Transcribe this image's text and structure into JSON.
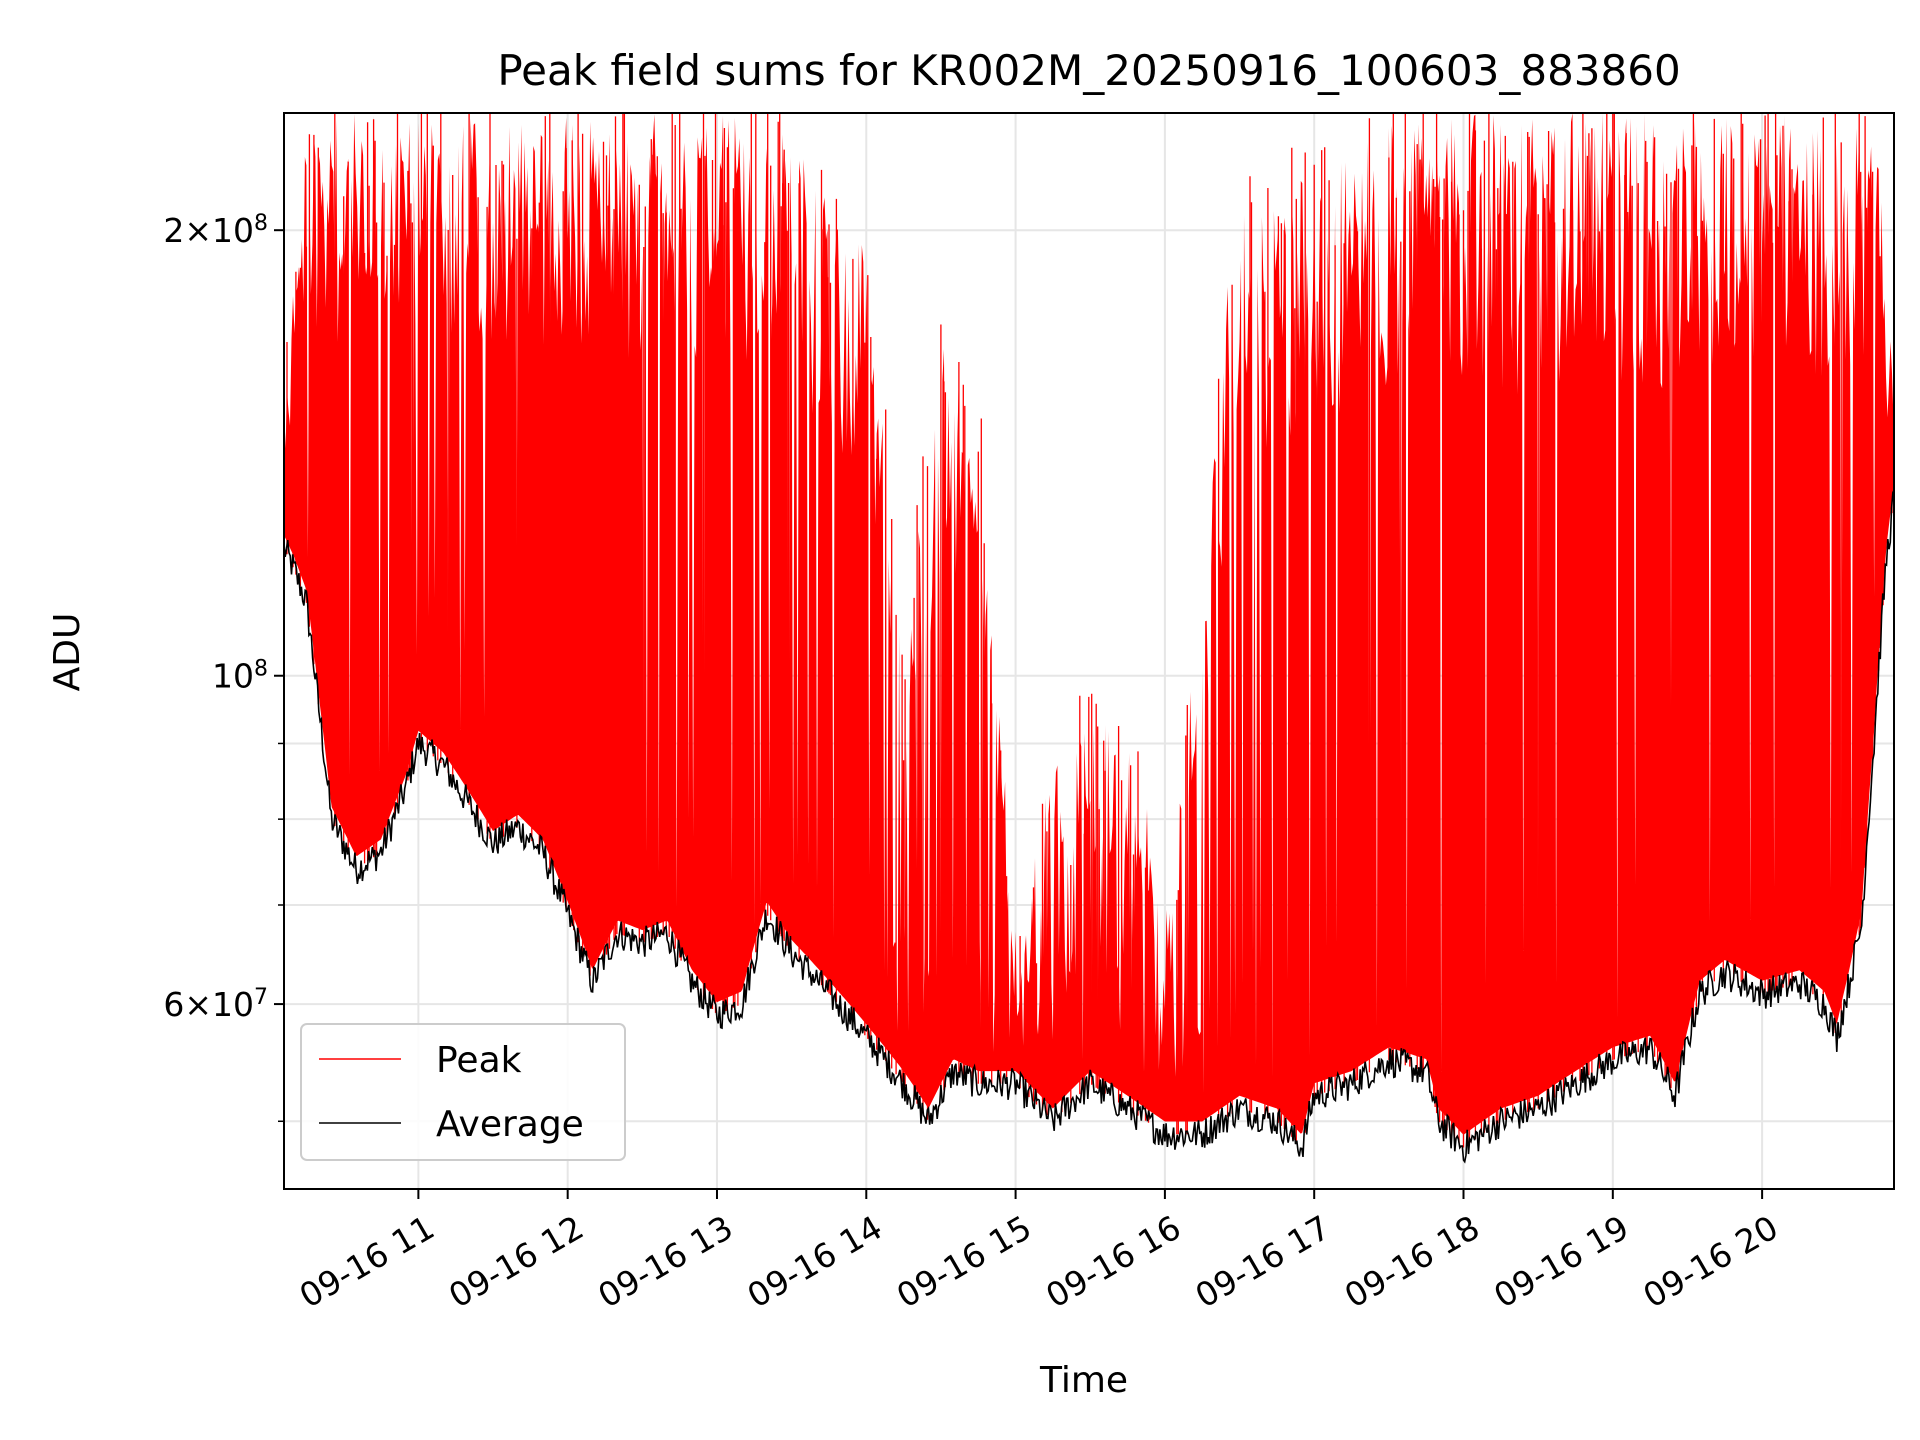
{
  "chart_data": {
    "type": "line",
    "title": "Peak field sums for KR002M_20250916_100603_883860",
    "xlabel": "Time",
    "ylabel": "ADU",
    "y_scale": "log",
    "ylim": [
      45000000,
      240000000
    ],
    "xlim": [
      "2025-09-16 10:06",
      "2025-09-16 20:53"
    ],
    "grid": true,
    "legend_position": "lower-left",
    "x_ticks": [
      {
        "label": "09-16 11",
        "value": "2025-09-16 11:00"
      },
      {
        "label": "09-16 12",
        "value": "2025-09-16 12:00"
      },
      {
        "label": "09-16 13",
        "value": "2025-09-16 13:00"
      },
      {
        "label": "09-16 14",
        "value": "2025-09-16 14:00"
      },
      {
        "label": "09-16 15",
        "value": "2025-09-16 15:00"
      },
      {
        "label": "09-16 16",
        "value": "2025-09-16 16:00"
      },
      {
        "label": "09-16 17",
        "value": "2025-09-16 17:00"
      },
      {
        "label": "09-16 18",
        "value": "2025-09-16 18:00"
      },
      {
        "label": "09-16 19",
        "value": "2025-09-16 19:00"
      },
      {
        "label": "09-16 20",
        "value": "2025-09-16 20:00"
      }
    ],
    "y_ticks": [
      {
        "base": "2",
        "mantissa_sep": "×",
        "exp_base": "10",
        "exponent": "8",
        "value": 200000000
      },
      {
        "base": "",
        "mantissa_sep": "",
        "exp_base": "10",
        "exponent": "8",
        "value": 100000000
      },
      {
        "base": "6",
        "mantissa_sep": "×",
        "exp_base": "10",
        "exponent": "7",
        "value": 60000000
      }
    ],
    "series": [
      {
        "name": "Peak",
        "color": "#ff0000",
        "x": [
          "2025-09-16 10:06",
          "2025-09-16 10:15",
          "2025-09-16 10:30",
          "2025-09-16 10:45",
          "2025-09-16 11:00",
          "2025-09-16 11:15",
          "2025-09-16 11:30",
          "2025-09-16 11:45",
          "2025-09-16 12:00",
          "2025-09-16 12:15",
          "2025-09-16 12:30",
          "2025-09-16 12:45",
          "2025-09-16 13:00",
          "2025-09-16 13:15",
          "2025-09-16 13:30",
          "2025-09-16 13:45",
          "2025-09-16 14:00",
          "2025-09-16 14:15",
          "2025-09-16 14:30",
          "2025-09-16 14:45",
          "2025-09-16 15:00",
          "2025-09-16 15:15",
          "2025-09-16 15:30",
          "2025-09-16 15:45",
          "2025-09-16 16:00",
          "2025-09-16 16:15",
          "2025-09-16 16:30",
          "2025-09-16 16:45",
          "2025-09-16 17:00",
          "2025-09-16 17:15",
          "2025-09-16 17:30",
          "2025-09-16 17:45",
          "2025-09-16 18:00",
          "2025-09-16 18:15",
          "2025-09-16 18:30",
          "2025-09-16 18:45",
          "2025-09-16 19:00",
          "2025-09-16 19:15",
          "2025-09-16 19:30",
          "2025-09-16 19:45",
          "2025-09-16 20:00",
          "2025-09-16 20:15",
          "2025-09-16 20:30",
          "2025-09-16 20:45",
          "2025-09-16 20:53"
        ],
        "values": [
          150000000,
          230000000,
          240000000,
          240000000,
          240000000,
          240000000,
          240000000,
          240000000,
          240000000,
          240000000,
          240000000,
          240000000,
          240000000,
          240000000,
          230000000,
          210000000,
          195000000,
          100000000,
          170000000,
          150000000,
          60000000,
          90000000,
          95000000,
          90000000,
          75000000,
          110000000,
          225000000,
          215000000,
          220000000,
          225000000,
          240000000,
          240000000,
          240000000,
          240000000,
          240000000,
          240000000,
          240000000,
          240000000,
          240000000,
          240000000,
          240000000,
          240000000,
          240000000,
          240000000,
          160000000
        ]
      },
      {
        "name": "Average",
        "color": "#000000",
        "x": [
          "2025-09-16 10:06",
          "2025-09-16 10:10",
          "2025-09-16 10:15",
          "2025-09-16 10:20",
          "2025-09-16 10:25",
          "2025-09-16 10:30",
          "2025-09-16 10:35",
          "2025-09-16 10:45",
          "2025-09-16 10:55",
          "2025-09-16 11:00",
          "2025-09-16 11:10",
          "2025-09-16 11:20",
          "2025-09-16 11:30",
          "2025-09-16 11:40",
          "2025-09-16 11:50",
          "2025-09-16 12:00",
          "2025-09-16 12:10",
          "2025-09-16 12:20",
          "2025-09-16 12:30",
          "2025-09-16 12:40",
          "2025-09-16 12:50",
          "2025-09-16 13:00",
          "2025-09-16 13:10",
          "2025-09-16 13:20",
          "2025-09-16 13:30",
          "2025-09-16 13:45",
          "2025-09-16 14:00",
          "2025-09-16 14:15",
          "2025-09-16 14:25",
          "2025-09-16 14:35",
          "2025-09-16 14:45",
          "2025-09-16 15:00",
          "2025-09-16 15:15",
          "2025-09-16 15:30",
          "2025-09-16 15:45",
          "2025-09-16 16:00",
          "2025-09-16 16:15",
          "2025-09-16 16:30",
          "2025-09-16 16:45",
          "2025-09-16 16:55",
          "2025-09-16 17:00",
          "2025-09-16 17:15",
          "2025-09-16 17:30",
          "2025-09-16 17:45",
          "2025-09-16 17:50",
          "2025-09-16 18:00",
          "2025-09-16 18:15",
          "2025-09-16 18:30",
          "2025-09-16 18:45",
          "2025-09-16 19:00",
          "2025-09-16 19:15",
          "2025-09-16 19:25",
          "2025-09-16 19:35",
          "2025-09-16 19:45",
          "2025-09-16 20:00",
          "2025-09-16 20:15",
          "2025-09-16 20:25",
          "2025-09-16 20:30",
          "2025-09-16 20:35",
          "2025-09-16 20:40",
          "2025-09-16 20:45",
          "2025-09-16 20:50",
          "2025-09-16 20:53"
        ],
        "values": [
          122000000,
          118000000,
          112000000,
          95000000,
          80000000,
          77000000,
          74000000,
          76000000,
          84000000,
          90000000,
          87000000,
          82000000,
          77000000,
          79000000,
          76000000,
          69000000,
          62000000,
          67000000,
          66000000,
          67000000,
          62000000,
          59000000,
          60000000,
          69000000,
          65000000,
          61000000,
          57000000,
          53000000,
          50000000,
          54000000,
          53000000,
          53000000,
          50000000,
          53000000,
          51000000,
          49000000,
          49000000,
          51000000,
          50000000,
          48000000,
          52000000,
          53000000,
          55000000,
          54000000,
          50000000,
          48000000,
          50000000,
          51000000,
          53000000,
          55000000,
          56000000,
          52000000,
          61000000,
          63000000,
          61000000,
          62000000,
          60000000,
          57000000,
          62000000,
          68000000,
          90000000,
          120000000,
          132000000
        ]
      }
    ]
  }
}
